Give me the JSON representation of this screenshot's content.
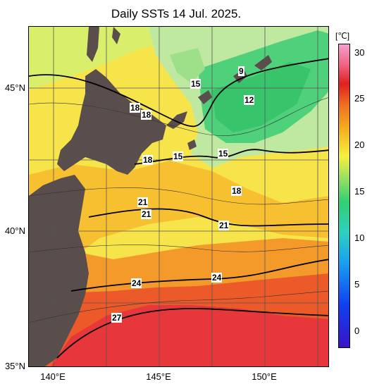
{
  "title": "Daily SSTs 14 Jul. 2025.",
  "lat_labels": [
    "45°N",
    "40°N",
    "35°N"
  ],
  "lon_labels": [
    "140°E",
    "145°E",
    "150°E"
  ],
  "isotherm_labels": [
    "9",
    "15",
    "12",
    "18",
    "18",
    "18",
    "15",
    "15",
    "18",
    "21",
    "21",
    "21",
    "24",
    "24",
    "27"
  ],
  "colorbar": {
    "unit": "[℃]",
    "ticks": [
      "30",
      "25",
      "20",
      "15",
      "10",
      "5",
      "0"
    ]
  },
  "colors": {
    "land": "#5a4e4c",
    "warm": "#e8373a",
    "cool": "#4ccf72"
  }
}
